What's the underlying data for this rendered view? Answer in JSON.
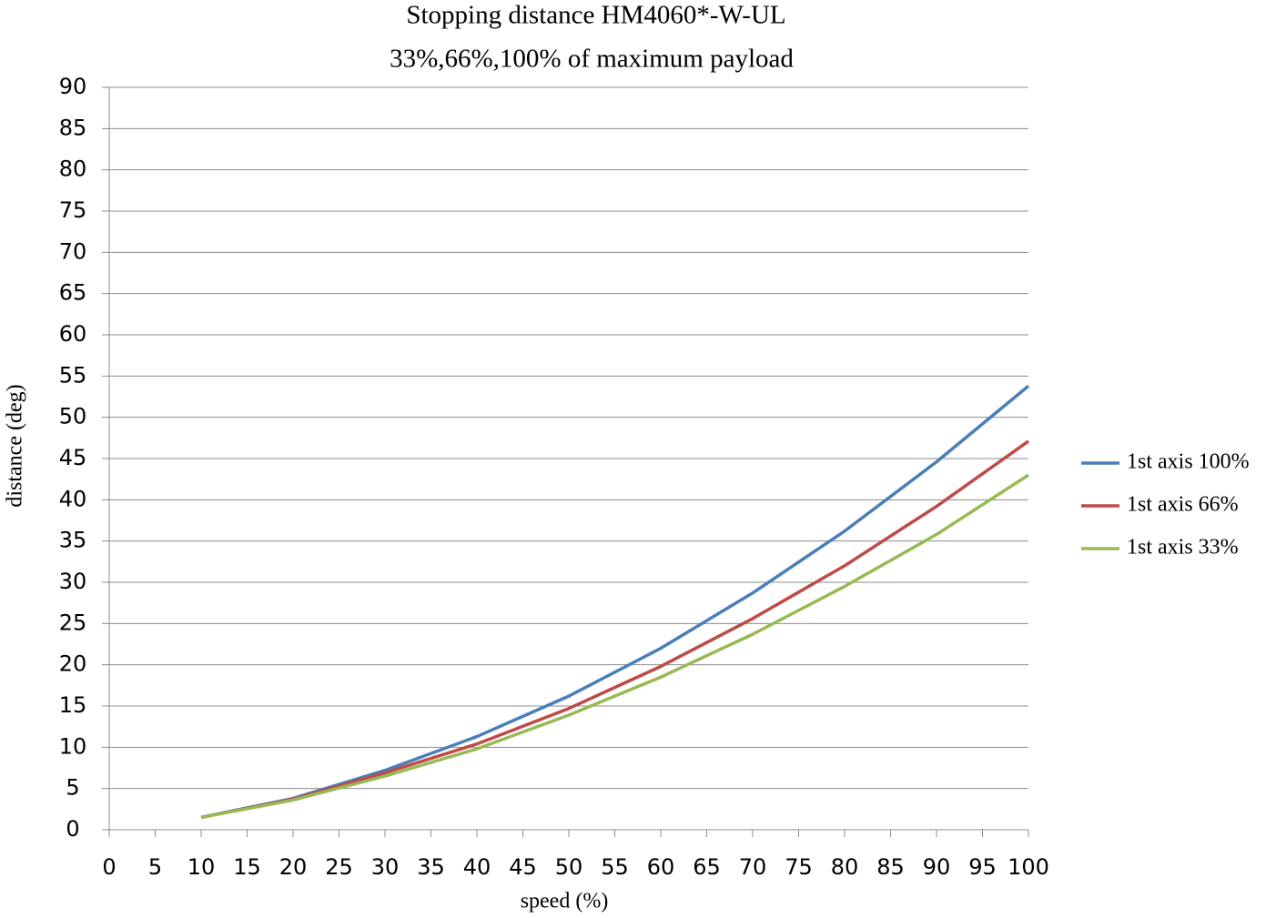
{
  "chart_data": {
    "type": "line",
    "title": "Stopping distance HM4060*-W-UL",
    "subtitle": "33%,66%,100% of maximum payload",
    "x_label": "speed (%)",
    "y_label": "distance (deg)",
    "x": [
      10,
      20,
      30,
      40,
      50,
      60,
      70,
      80,
      90,
      100
    ],
    "series": [
      {
        "name": "1st axis 100%",
        "color": "#4a7ebb",
        "values": [
          1.5,
          3.8,
          7.2,
          11.3,
          16.2,
          22.0,
          28.7,
          36.2,
          44.6,
          53.8
        ]
      },
      {
        "name": "1st axis 66%",
        "color": "#be4b48",
        "values": [
          1.5,
          3.7,
          6.9,
          10.4,
          14.7,
          19.8,
          25.6,
          32.0,
          39.2,
          47.1
        ]
      },
      {
        "name": "1st axis 33%",
        "color": "#98b954",
        "values": [
          1.5,
          3.6,
          6.5,
          9.8,
          13.9,
          18.5,
          23.7,
          29.5,
          35.8,
          43.0
        ]
      }
    ],
    "xlim": [
      0,
      100
    ],
    "xticks": [
      0,
      5,
      10,
      15,
      20,
      25,
      30,
      35,
      40,
      45,
      50,
      55,
      60,
      65,
      70,
      75,
      80,
      85,
      90,
      95,
      100
    ],
    "ylim": [
      0,
      90
    ],
    "yticks": [
      0,
      5,
      10,
      15,
      20,
      25,
      30,
      35,
      40,
      45,
      50,
      55,
      60,
      65,
      70,
      75,
      80,
      85,
      90
    ],
    "grid": true,
    "legend": "right"
  }
}
